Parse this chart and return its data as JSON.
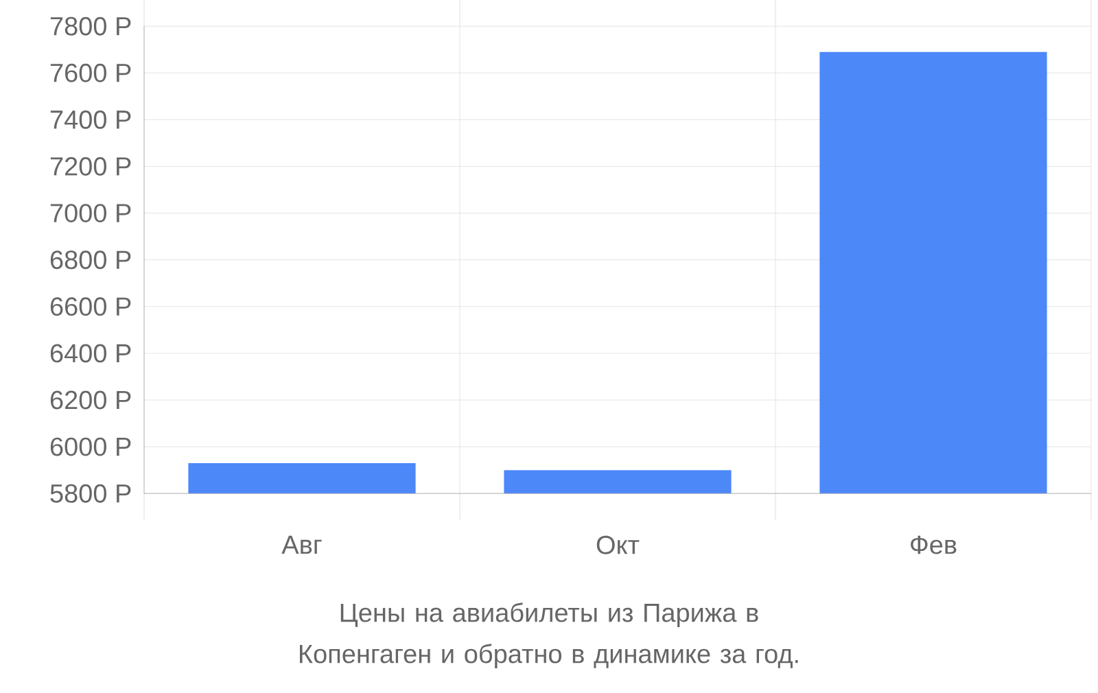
{
  "chart_data": {
    "type": "bar",
    "title": "Цены на авиабилеты из Парижа в Копенгаген и обратно в динамике за год.",
    "categories": [
      "Авг",
      "Окт",
      "Фев"
    ],
    "values": [
      5930,
      5900,
      7690
    ],
    "color": "#4d88f9",
    "ylim": [
      5800,
      7800
    ],
    "yticks": [
      {
        "value": 5800,
        "label": "5800 Р"
      },
      {
        "value": 6000,
        "label": "6000 Р"
      },
      {
        "value": 6200,
        "label": "6200 Р"
      },
      {
        "value": 6400,
        "label": "6400 Р"
      },
      {
        "value": 6600,
        "label": "6600 Р"
      },
      {
        "value": 6800,
        "label": "6800 Р"
      },
      {
        "value": 7000,
        "label": "7000 Р"
      },
      {
        "value": 7200,
        "label": "7200 Р"
      },
      {
        "value": 7400,
        "label": "7400 Р"
      },
      {
        "value": 7600,
        "label": "7600 Р"
      },
      {
        "value": 7800,
        "label": "7800 Р"
      }
    ],
    "grid": true
  }
}
